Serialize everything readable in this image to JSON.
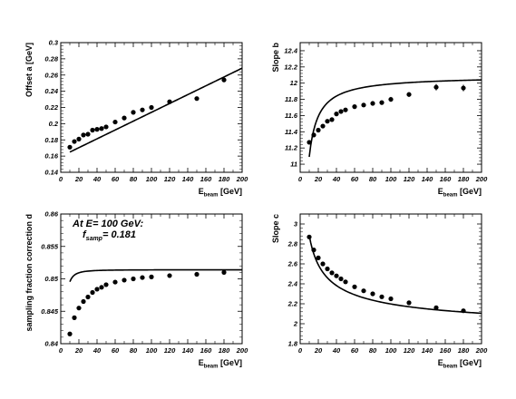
{
  "chart_data": [
    {
      "type": "scatter",
      "xlabel": {
        "main": "E",
        "sub": "beam",
        "unit": "[GeV]"
      },
      "ylabel": "Offset a [GeV]",
      "xlim": [
        0,
        200
      ],
      "ylim": [
        0.14,
        0.3
      ],
      "xticks": [
        0,
        20,
        40,
        60,
        80,
        100,
        120,
        140,
        160,
        180,
        200
      ],
      "yticks": [
        "0.14",
        "0.16",
        "0.18",
        "0.2",
        "0.22",
        "0.24",
        "0.26",
        "0.28",
        "0.3"
      ],
      "points": [
        [
          10,
          0.171
        ],
        [
          15,
          0.178
        ],
        [
          20,
          0.181
        ],
        [
          25,
          0.186
        ],
        [
          30,
          0.187
        ],
        [
          35,
          0.192
        ],
        [
          40,
          0.193
        ],
        [
          45,
          0.194
        ],
        [
          50,
          0.196
        ],
        [
          60,
          0.202
        ],
        [
          70,
          0.207
        ],
        [
          80,
          0.214
        ],
        [
          90,
          0.217
        ],
        [
          100,
          0.22
        ],
        [
          120,
          0.227
        ],
        [
          150,
          0.231
        ],
        [
          180,
          0.254
        ]
      ],
      "fit": {
        "kind": "linear",
        "intercept": 0.1595,
        "slope": 0.000545
      },
      "annotation": []
    },
    {
      "type": "scatter",
      "xlabel": {
        "main": "E",
        "sub": "beam",
        "unit": "[GeV]"
      },
      "ylabel": "Slope b",
      "xlim": [
        0,
        200
      ],
      "ylim": [
        10.9,
        12.5
      ],
      "xticks": [
        0,
        20,
        40,
        60,
        80,
        100,
        120,
        140,
        160,
        180,
        200
      ],
      "yticks": [
        "11",
        "11.2",
        "11.4",
        "11.6",
        "11.8",
        "12",
        "12.2",
        "12.4"
      ],
      "points": [
        [
          10,
          11.27,
          0.02
        ],
        [
          15,
          11.36,
          0.02
        ],
        [
          20,
          11.42,
          0.02
        ],
        [
          25,
          11.47,
          0.02
        ],
        [
          30,
          11.53,
          0.02
        ],
        [
          35,
          11.55,
          0.02
        ],
        [
          40,
          11.62,
          0.02
        ],
        [
          45,
          11.65,
          0.02
        ],
        [
          50,
          11.67,
          0.02
        ],
        [
          60,
          11.71,
          0.02
        ],
        [
          70,
          11.73,
          0.02
        ],
        [
          80,
          11.75,
          0.02
        ],
        [
          90,
          11.76,
          0.02
        ],
        [
          100,
          11.8,
          0.03
        ],
        [
          120,
          11.86,
          0.03
        ],
        [
          150,
          11.95,
          0.04
        ],
        [
          180,
          11.94,
          0.04
        ]
      ],
      "fit": {
        "kind": "asymptotic",
        "A": 12.09,
        "B": 10.0,
        "power": 1
      },
      "annotation": []
    },
    {
      "type": "scatter",
      "xlabel": {
        "main": "E",
        "sub": "beam",
        "unit": "[GeV]"
      },
      "ylabel": "sampling fraction correction d",
      "xlim": [
        0,
        200
      ],
      "ylim": [
        0.84,
        0.86
      ],
      "xticks": [
        0,
        20,
        40,
        60,
        80,
        100,
        120,
        140,
        160,
        180,
        200
      ],
      "yticks": [
        "0.84",
        "0.845",
        "0.85",
        "0.855",
        "0.86"
      ],
      "points": [
        [
          10,
          0.8415
        ],
        [
          15,
          0.844
        ],
        [
          20,
          0.8455
        ],
        [
          25,
          0.8465
        ],
        [
          30,
          0.8472
        ],
        [
          35,
          0.8479
        ],
        [
          40,
          0.8484
        ],
        [
          45,
          0.8487
        ],
        [
          50,
          0.8491
        ],
        [
          60,
          0.8495
        ],
        [
          70,
          0.8498
        ],
        [
          80,
          0.85
        ],
        [
          90,
          0.8502
        ],
        [
          100,
          0.8503
        ],
        [
          120,
          0.8505
        ],
        [
          150,
          0.8507
        ],
        [
          180,
          0.851
        ]
      ],
      "fit": {
        "kind": "saturating",
        "A": 0.8514,
        "B": 0.185,
        "power": 2
      },
      "annotation": [
        {
          "text": "At E= 100 GeV:"
        },
        {
          "text": "f",
          "sub": "samp",
          "rest": "= 0.181"
        }
      ]
    },
    {
      "type": "scatter",
      "xlabel": {
        "main": "E",
        "sub": "beam",
        "unit": "[GeV]"
      },
      "ylabel": "Slope c",
      "xlim": [
        0,
        200
      ],
      "ylim": [
        1.8,
        3.1
      ],
      "xticks": [
        0,
        20,
        40,
        60,
        80,
        100,
        120,
        140,
        160,
        180,
        200
      ],
      "yticks": [
        "1.8",
        "2",
        "2.2",
        "2.4",
        "2.6",
        "2.8",
        "3"
      ],
      "points": [
        [
          10,
          2.87
        ],
        [
          15,
          2.74
        ],
        [
          20,
          2.66
        ],
        [
          25,
          2.6
        ],
        [
          30,
          2.55
        ],
        [
          35,
          2.51
        ],
        [
          40,
          2.48
        ],
        [
          45,
          2.45
        ],
        [
          50,
          2.42
        ],
        [
          60,
          2.37
        ],
        [
          70,
          2.33
        ],
        [
          80,
          2.3
        ],
        [
          90,
          2.27
        ],
        [
          100,
          2.25
        ],
        [
          120,
          2.21
        ],
        [
          150,
          2.16
        ],
        [
          180,
          2.13
        ]
      ],
      "fit": {
        "kind": "decay",
        "A": 1.88,
        "B": 3.18,
        "power": 0.5
      },
      "annotation": []
    }
  ]
}
